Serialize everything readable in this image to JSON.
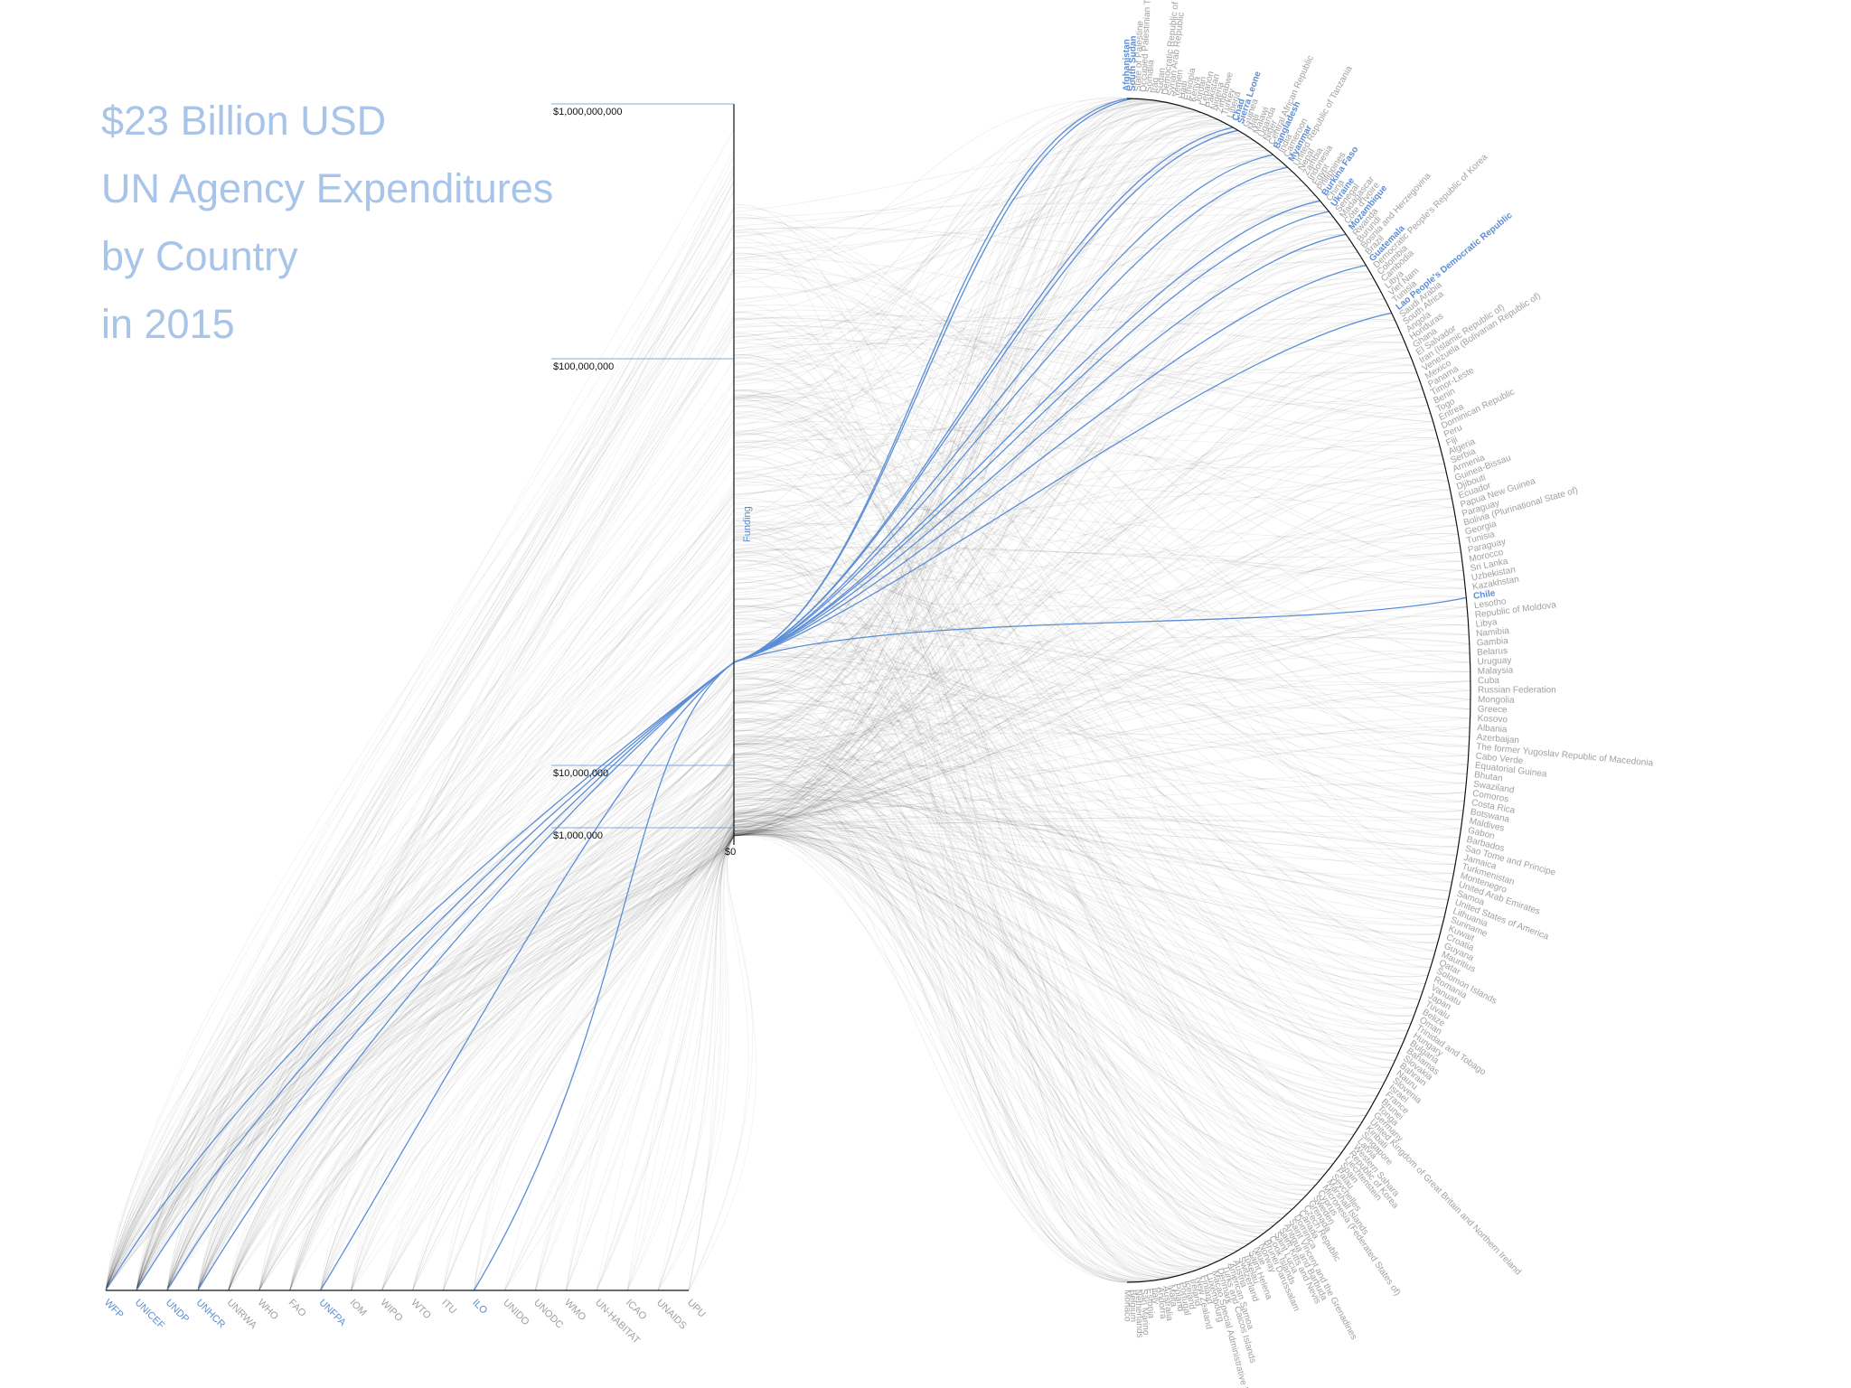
{
  "title": {
    "line1": "$23 Billion USD",
    "line2": "UN Agency Expenditures",
    "line3": "by Country",
    "line4": "in 2015"
  },
  "colors": {
    "highlight": "#5b8ed6",
    "title": "#a8c4e8",
    "muted_label": "#a0a0a0",
    "link": "#000000",
    "axis": "#111111"
  },
  "chart_data": {
    "type": "hive-plot",
    "axes": {
      "funding_axis_label": "Funding",
      "scale": "log",
      "ticks": [
        {
          "label": "$1,000,000,000",
          "value": 1000000000
        },
        {
          "label": "$100,000,000",
          "value": 100000000
        },
        {
          "label": "$10,000,000",
          "value": 10000000
        },
        {
          "label": "$1,000,000",
          "value": 1000000
        }
      ],
      "origin_label": "$0"
    },
    "agencies": [
      {
        "name": "WFP",
        "highlight": true
      },
      {
        "name": "UNICEF",
        "highlight": true
      },
      {
        "name": "UNDP",
        "highlight": true
      },
      {
        "name": "UNHCR",
        "highlight": true
      },
      {
        "name": "UNRWA",
        "highlight": false
      },
      {
        "name": "WHO",
        "highlight": false
      },
      {
        "name": "FAO",
        "highlight": false
      },
      {
        "name": "UNFPA",
        "highlight": true
      },
      {
        "name": "IOM",
        "highlight": false
      },
      {
        "name": "WIPO",
        "highlight": false
      },
      {
        "name": "WTO",
        "highlight": false
      },
      {
        "name": "ITU",
        "highlight": false
      },
      {
        "name": "ILO",
        "highlight": true
      },
      {
        "name": "UNIDO",
        "highlight": false
      },
      {
        "name": "UNODC",
        "highlight": false
      },
      {
        "name": "WMO",
        "highlight": false
      },
      {
        "name": "UN-HABITAT",
        "highlight": false
      },
      {
        "name": "ICAO",
        "highlight": false
      },
      {
        "name": "UNAIDS",
        "highlight": false
      },
      {
        "name": "UPU",
        "highlight": false
      }
    ],
    "countries": [
      {
        "name": "Afghanistan",
        "highlight": true
      },
      {
        "name": "South Sudan",
        "highlight": true
      },
      {
        "name": "State of Palestine",
        "highlight": false
      },
      {
        "name": "Occupied Palestinian Territory",
        "highlight": false
      },
      {
        "name": "Somalia",
        "highlight": false
      },
      {
        "name": "Iraq",
        "highlight": false
      },
      {
        "name": "Sudan",
        "highlight": false
      },
      {
        "name": "Democratic Republic of the Congo",
        "highlight": false
      },
      {
        "name": "Syrian Arab Republic",
        "highlight": false
      },
      {
        "name": "Yemen",
        "highlight": false
      },
      {
        "name": "Haiti",
        "highlight": false
      },
      {
        "name": "Ethiopia",
        "highlight": false
      },
      {
        "name": "Kenya",
        "highlight": false
      },
      {
        "name": "Jordan",
        "highlight": false
      },
      {
        "name": "Lebanon",
        "highlight": false
      },
      {
        "name": "Pakistan",
        "highlight": false
      },
      {
        "name": "Nigeria",
        "highlight": false
      },
      {
        "name": "Zimbabwe",
        "highlight": false
      },
      {
        "name": "Turkey",
        "highlight": false
      },
      {
        "name": "Liberia",
        "highlight": false
      },
      {
        "name": "Chad",
        "highlight": true
      },
      {
        "name": "Sierra Leone",
        "highlight": true
      },
      {
        "name": "Guinea",
        "highlight": false
      },
      {
        "name": "Mali",
        "highlight": false
      },
      {
        "name": "Malawi",
        "highlight": false
      },
      {
        "name": "Uganda",
        "highlight": false
      },
      {
        "name": "Niger",
        "highlight": false
      },
      {
        "name": "Central African Republic",
        "highlight": false
      },
      {
        "name": "Bangladesh",
        "highlight": true
      },
      {
        "name": "India",
        "highlight": false
      },
      {
        "name": "Cameroon",
        "highlight": false
      },
      {
        "name": "Myanmar",
        "highlight": true
      },
      {
        "name": "United Republic of Tanzania",
        "highlight": false
      },
      {
        "name": "Nepal",
        "highlight": false
      },
      {
        "name": "Zambia",
        "highlight": false
      },
      {
        "name": "Indonesia",
        "highlight": false
      },
      {
        "name": "Egypt",
        "highlight": false
      },
      {
        "name": "Philippines",
        "highlight": false
      },
      {
        "name": "Burkina Faso",
        "highlight": true
      },
      {
        "name": "China",
        "highlight": false
      },
      {
        "name": "Ukraine",
        "highlight": true
      },
      {
        "name": "Senegal",
        "highlight": false
      },
      {
        "name": "Madagascar",
        "highlight": false
      },
      {
        "name": "Côte d'Ivoire",
        "highlight": false
      },
      {
        "name": "Mozambique",
        "highlight": true
      },
      {
        "name": "Rwanda",
        "highlight": false
      },
      {
        "name": "Burundi",
        "highlight": false
      },
      {
        "name": "Bosnia and Herzegovina",
        "highlight": false
      },
      {
        "name": "Brazil",
        "highlight": false
      },
      {
        "name": "Guatemala",
        "highlight": true
      },
      {
        "name": "Democratic People's Republic of Korea",
        "highlight": false
      },
      {
        "name": "Colombia",
        "highlight": false
      },
      {
        "name": "Cambodia",
        "highlight": false
      },
      {
        "name": "Libya",
        "highlight": false
      },
      {
        "name": "Viet Nam",
        "highlight": false
      },
      {
        "name": "Tunisia",
        "highlight": false
      },
      {
        "name": "Lao People's Democratic Republic",
        "highlight": true
      },
      {
        "name": "Saudi Arabia",
        "highlight": false
      },
      {
        "name": "South Africa",
        "highlight": false
      },
      {
        "name": "Angola",
        "highlight": false
      },
      {
        "name": "Honduras",
        "highlight": false
      },
      {
        "name": "Ghana",
        "highlight": false
      },
      {
        "name": "El Salvador",
        "highlight": false
      },
      {
        "name": "Iran (Islamic Republic of)",
        "highlight": false
      },
      {
        "name": "Venezuela (Bolivarian Republic of)",
        "highlight": false
      },
      {
        "name": "Mexico",
        "highlight": false
      },
      {
        "name": "Panama",
        "highlight": false
      },
      {
        "name": "Timor-Leste",
        "highlight": false
      },
      {
        "name": "Benin",
        "highlight": false
      },
      {
        "name": "Togo",
        "highlight": false
      },
      {
        "name": "Eritrea",
        "highlight": false
      },
      {
        "name": "Dominican Republic",
        "highlight": false
      },
      {
        "name": "Peru",
        "highlight": false
      },
      {
        "name": "Fiji",
        "highlight": false
      },
      {
        "name": "Algeria",
        "highlight": false
      },
      {
        "name": "Serbia",
        "highlight": false
      },
      {
        "name": "Armenia",
        "highlight": false
      },
      {
        "name": "Guinea-Bissau",
        "highlight": false
      },
      {
        "name": "Djibouti",
        "highlight": false
      },
      {
        "name": "Ecuador",
        "highlight": false
      },
      {
        "name": "Papua New Guinea",
        "highlight": false
      },
      {
        "name": "Paraguay",
        "highlight": false
      },
      {
        "name": "Bolivia (Plurinational State of)",
        "highlight": false
      },
      {
        "name": "Georgia",
        "highlight": false
      },
      {
        "name": "Tunisia",
        "highlight": false
      },
      {
        "name": "Paraguay",
        "highlight": false
      },
      {
        "name": "Morocco",
        "highlight": false
      },
      {
        "name": "Sri Lanka",
        "highlight": false
      },
      {
        "name": "Uzbekistan",
        "highlight": false
      },
      {
        "name": "Kazakhstan",
        "highlight": false
      },
      {
        "name": "Chile",
        "highlight": true
      },
      {
        "name": "Lesotho",
        "highlight": false
      },
      {
        "name": "Republic of Moldova",
        "highlight": false
      },
      {
        "name": "Libya",
        "highlight": false
      },
      {
        "name": "Namibia",
        "highlight": false
      },
      {
        "name": "Gambia",
        "highlight": false
      },
      {
        "name": "Belarus",
        "highlight": false
      },
      {
        "name": "Uruguay",
        "highlight": false
      },
      {
        "name": "Malaysia",
        "highlight": false
      },
      {
        "name": "Cuba",
        "highlight": false
      },
      {
        "name": "Russian Federation",
        "highlight": false
      },
      {
        "name": "Mongolia",
        "highlight": false
      },
      {
        "name": "Greece",
        "highlight": false
      },
      {
        "name": "Kosovo",
        "highlight": false
      },
      {
        "name": "Albania",
        "highlight": false
      },
      {
        "name": "Azerbaijan",
        "highlight": false
      },
      {
        "name": "The former Yugoslav Republic of Macedonia",
        "highlight": false
      },
      {
        "name": "Cabo Verde",
        "highlight": false
      },
      {
        "name": "Equatorial Guinea",
        "highlight": false
      },
      {
        "name": "Bhutan",
        "highlight": false
      },
      {
        "name": "Swaziland",
        "highlight": false
      },
      {
        "name": "Comoros",
        "highlight": false
      },
      {
        "name": "Costa Rica",
        "highlight": false
      },
      {
        "name": "Botswana",
        "highlight": false
      },
      {
        "name": "Maldives",
        "highlight": false
      },
      {
        "name": "Gabon",
        "highlight": false
      },
      {
        "name": "Barbados",
        "highlight": false
      },
      {
        "name": "Sao Tome and Principe",
        "highlight": false
      },
      {
        "name": "Jamaica",
        "highlight": false
      },
      {
        "name": "Turkmenistan",
        "highlight": false
      },
      {
        "name": "Montenegro",
        "highlight": false
      },
      {
        "name": "United Arab Emirates",
        "highlight": false
      },
      {
        "name": "Samoa",
        "highlight": false
      },
      {
        "name": "United States of America",
        "highlight": false
      },
      {
        "name": "Lithuania",
        "highlight": false
      },
      {
        "name": "Suriname",
        "highlight": false
      },
      {
        "name": "Kuwait",
        "highlight": false
      },
      {
        "name": "Croatia",
        "highlight": false
      },
      {
        "name": "Guyana",
        "highlight": false
      },
      {
        "name": "Mauritius",
        "highlight": false
      },
      {
        "name": "Qatar",
        "highlight": false
      },
      {
        "name": "Solomon Islands",
        "highlight": false
      },
      {
        "name": "Romania",
        "highlight": false
      },
      {
        "name": "Vanuatu",
        "highlight": false
      },
      {
        "name": "Japan",
        "highlight": false
      },
      {
        "name": "Tuvalu",
        "highlight": false
      },
      {
        "name": "Belize",
        "highlight": false
      },
      {
        "name": "Oman",
        "highlight": false
      },
      {
        "name": "Trinidad and Tobago",
        "highlight": false
      },
      {
        "name": "Hungary",
        "highlight": false
      },
      {
        "name": "Bulgaria",
        "highlight": false
      },
      {
        "name": "Bahamas",
        "highlight": false
      },
      {
        "name": "Slovakia",
        "highlight": false
      },
      {
        "name": "Bahrain",
        "highlight": false
      },
      {
        "name": "Nauru",
        "highlight": false
      },
      {
        "name": "Slovenia",
        "highlight": false
      },
      {
        "name": "Israel",
        "highlight": false
      },
      {
        "name": "France",
        "highlight": false
      },
      {
        "name": "Brunei",
        "highlight": false
      },
      {
        "name": "Tonga",
        "highlight": false
      },
      {
        "name": "Germany",
        "highlight": false
      },
      {
        "name": "United Kingdom of Great Britain and Northern Ireland",
        "highlight": false
      },
      {
        "name": "Kiribati",
        "highlight": false
      },
      {
        "name": "Singapore",
        "highlight": false
      },
      {
        "name": "Latvia",
        "highlight": false
      },
      {
        "name": "Western Sahara",
        "highlight": false
      },
      {
        "name": "Republic of Korea",
        "highlight": false
      },
      {
        "name": "Liechtenstein",
        "highlight": false
      },
      {
        "name": "Spain",
        "highlight": false
      },
      {
        "name": "Palau",
        "highlight": false
      },
      {
        "name": "Seychelles",
        "highlight": false
      },
      {
        "name": "Marshall Islands",
        "highlight": false
      },
      {
        "name": "Micronesia (Federated States of)",
        "highlight": false
      },
      {
        "name": "Cyprus",
        "highlight": false
      },
      {
        "name": "Sweden",
        "highlight": false
      },
      {
        "name": "Grenada",
        "highlight": false
      },
      {
        "name": "Czech Republic",
        "highlight": false
      },
      {
        "name": "Canada",
        "highlight": false
      },
      {
        "name": "Dominica",
        "highlight": false
      },
      {
        "name": "Saint Vincent and the Grenadines",
        "highlight": false
      },
      {
        "name": "Antigua and Barbuda",
        "highlight": false
      },
      {
        "name": "Saint Kitts and Nevis",
        "highlight": false
      },
      {
        "name": "Saint Lucia",
        "highlight": false
      },
      {
        "name": "Cook Islands",
        "highlight": false
      },
      {
        "name": "Brunei Darussalam",
        "highlight": false
      },
      {
        "name": "Norway",
        "highlight": false
      },
      {
        "name": "Niue",
        "highlight": false
      },
      {
        "name": "Saint Helena",
        "highlight": false
      },
      {
        "name": "Tokelau",
        "highlight": false
      },
      {
        "name": "Switzerland",
        "highlight": false
      },
      {
        "name": "Austria",
        "highlight": false
      },
      {
        "name": "American Samoa",
        "highlight": false
      },
      {
        "name": "Turks and Caicos Islands",
        "highlight": false
      },
      {
        "name": "Denmark",
        "highlight": false
      },
      {
        "name": "Macao Special Administrative Region",
        "highlight": false
      },
      {
        "name": "Luxembourg",
        "highlight": false
      },
      {
        "name": "Finland",
        "highlight": false
      },
      {
        "name": "New Zealand",
        "highlight": false
      },
      {
        "name": "Ireland",
        "highlight": false
      },
      {
        "name": "Iceland",
        "highlight": false
      },
      {
        "name": "Portugal",
        "highlight": false
      },
      {
        "name": "Poland",
        "highlight": false
      },
      {
        "name": "Malta",
        "highlight": false
      },
      {
        "name": "Australia",
        "highlight": false
      },
      {
        "name": "Andorra",
        "highlight": false
      },
      {
        "name": "Italy",
        "highlight": false
      },
      {
        "name": "Estonia",
        "highlight": false
      },
      {
        "name": "San Marino",
        "highlight": false
      },
      {
        "name": "Netherlands",
        "highlight": false
      },
      {
        "name": "Belgium",
        "highlight": false
      },
      {
        "name": "Monaco",
        "highlight": false
      }
    ]
  }
}
